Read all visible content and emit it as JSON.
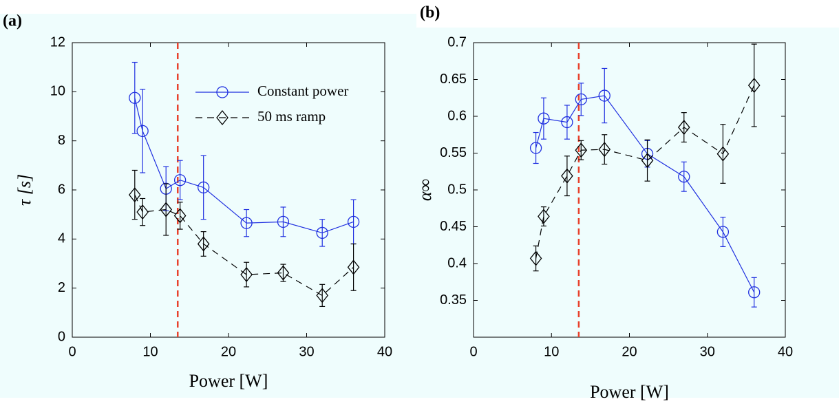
{
  "chart_data": [
    {
      "type": "line",
      "label": "(a)",
      "xlabel": "Power [W]",
      "ylabel": "τ [s]",
      "xlim": [
        0,
        40
      ],
      "xticks": [
        0,
        10,
        20,
        30,
        40
      ],
      "ylim": [
        0,
        12
      ],
      "yticks": [
        0,
        2,
        4,
        6,
        8,
        10,
        12
      ],
      "legend": "upper right",
      "vline": {
        "x": 13.5,
        "color": "#e8412c"
      },
      "x": [
        8,
        9,
        12,
        13.8,
        16.8,
        22.3,
        27,
        32,
        36
      ],
      "series": [
        {
          "name": "Constant power",
          "color": "#1f2fe0",
          "marker": "circle",
          "linestyle": "solid",
          "values": [
            9.75,
            8.4,
            6.05,
            6.4,
            6.1,
            4.65,
            4.7,
            4.25,
            4.7
          ],
          "errors": [
            1.45,
            1.7,
            0.9,
            0.8,
            1.3,
            0.55,
            0.6,
            0.55,
            0.9
          ]
        },
        {
          "name": "50 ms ramp",
          "color": "#000000",
          "marker": "diamond",
          "linestyle": "dashed",
          "values": [
            5.8,
            5.1,
            5.2,
            4.95,
            3.8,
            2.55,
            2.62,
            1.7,
            2.85
          ],
          "errors": [
            1.0,
            0.55,
            1.05,
            0.55,
            0.5,
            0.5,
            0.35,
            0.45,
            0.95
          ]
        }
      ]
    },
    {
      "type": "line",
      "label": "(b)",
      "xlabel": "Power [W]",
      "ylabel": "α∞",
      "xlim": [
        0,
        40
      ],
      "xticks": [
        0,
        10,
        20,
        30,
        40
      ],
      "ylim": [
        0.3,
        0.7
      ],
      "yticks": [
        0.35,
        0.4,
        0.45,
        0.5,
        0.55,
        0.6,
        0.65,
        0.7
      ],
      "vline": {
        "x": 13.5,
        "color": "#e8412c"
      },
      "x": [
        8,
        9,
        12,
        13.8,
        16.8,
        22.3,
        27,
        32,
        36
      ],
      "series": [
        {
          "color": "#1f2fe0",
          "marker": "circle",
          "linestyle": "solid",
          "values": [
            0.557,
            0.597,
            0.592,
            0.623,
            0.628,
            0.549,
            0.518,
            0.443,
            0.361
          ],
          "errors": [
            0.021,
            0.028,
            0.023,
            0.022,
            0.037,
            0.018,
            0.02,
            0.02,
            0.02
          ]
        },
        {
          "color": "#000000",
          "marker": "diamond",
          "linestyle": "dashed",
          "values": [
            0.407,
            0.464,
            0.519,
            0.554,
            0.555,
            0.54,
            0.585,
            0.549,
            0.642
          ],
          "errors": [
            0.017,
            0.013,
            0.027,
            0.013,
            0.02,
            0.028,
            0.02,
            0.04,
            0.056
          ]
        }
      ]
    }
  ]
}
